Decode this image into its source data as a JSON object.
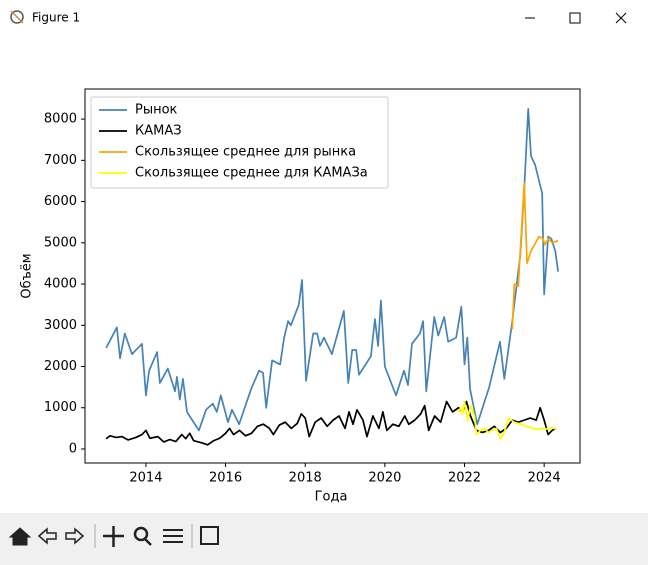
{
  "window": {
    "title": "Figure 1"
  },
  "chart_data": {
    "type": "line",
    "xlabel": "Года",
    "ylabel": "Объём",
    "xlim": [
      2012.47,
      2024.9
    ],
    "ylim": [
      -340,
      8730
    ],
    "xticks": [
      2014,
      2016,
      2018,
      2020,
      2022,
      2024
    ],
    "yticks": [
      0,
      1000,
      2000,
      3000,
      4000,
      5000,
      6000,
      7000,
      8000
    ],
    "legend": "upper left",
    "grid": false,
    "series": [
      {
        "name": "Рынок",
        "color": "#4682b4",
        "x": [
          2013.0,
          2013.27,
          2013.35,
          2013.47,
          2013.65,
          2013.9,
          2014.0,
          2014.08,
          2014.28,
          2014.35,
          2014.55,
          2014.73,
          2014.78,
          2014.85,
          2014.93,
          2015.03,
          2015.33,
          2015.51,
          2015.68,
          2015.78,
          2015.88,
          2016.06,
          2016.16,
          2016.34,
          2016.64,
          2016.84,
          2016.94,
          2017.02,
          2017.17,
          2017.37,
          2017.47,
          2017.57,
          2017.64,
          2017.84,
          2017.92,
          2018.02,
          2018.2,
          2018.3,
          2018.37,
          2018.47,
          2018.67,
          2018.97,
          2019.08,
          2019.18,
          2019.28,
          2019.35,
          2019.65,
          2019.75,
          2019.83,
          2019.9,
          2020.0,
          2020.28,
          2020.48,
          2020.58,
          2020.68,
          2020.88,
          2020.96,
          2021.04,
          2021.24,
          2021.34,
          2021.49,
          2021.59,
          2021.79,
          2021.92,
          2022.0,
          2022.07,
          2022.14,
          2022.32,
          2022.62,
          2022.89,
          2023.0,
          2023.2,
          2023.4,
          2023.5,
          2023.6,
          2023.67,
          2023.77,
          2023.95,
          2024.0,
          2024.1,
          2024.18,
          2024.28,
          2024.35
        ],
        "values": [
          2450,
          2950,
          2200,
          2800,
          2300,
          2550,
          1300,
          1900,
          2350,
          1600,
          1950,
          1400,
          1750,
          1200,
          1700,
          900,
          450,
          950,
          1100,
          900,
          1300,
          650,
          950,
          600,
          1450,
          1900,
          1850,
          1000,
          2150,
          2050,
          2700,
          3100,
          3000,
          3500,
          4100,
          1650,
          2800,
          2800,
          2500,
          2700,
          2300,
          3350,
          1600,
          2400,
          2400,
          1800,
          2250,
          3150,
          2500,
          3600,
          2000,
          1300,
          1900,
          1550,
          2550,
          2800,
          3100,
          1400,
          3200,
          2750,
          3200,
          2600,
          2700,
          3450,
          2050,
          2700,
          1450,
          600,
          1500,
          2600,
          1700,
          3100,
          4700,
          6300,
          8250,
          7100,
          6900,
          6200,
          3750,
          5150,
          5100,
          4800,
          4300
        ]
      },
      {
        "name": "КАМАЗ",
        "color": "#000000",
        "x": [
          2013.0,
          2013.1,
          2013.25,
          2013.4,
          2013.55,
          2013.75,
          2013.9,
          2014.0,
          2014.1,
          2014.3,
          2014.45,
          2014.6,
          2014.75,
          2014.9,
          2015.0,
          2015.1,
          2015.2,
          2015.4,
          2015.55,
          2015.7,
          2015.85,
          2016.0,
          2016.1,
          2016.2,
          2016.35,
          2016.5,
          2016.65,
          2016.8,
          2016.95,
          2017.1,
          2017.2,
          2017.35,
          2017.5,
          2017.65,
          2017.8,
          2017.9,
          2018.0,
          2018.1,
          2018.25,
          2018.4,
          2018.55,
          2018.7,
          2018.85,
          2019.0,
          2019.1,
          2019.2,
          2019.3,
          2019.45,
          2019.55,
          2019.7,
          2019.85,
          2019.95,
          2020.05,
          2020.2,
          2020.35,
          2020.5,
          2020.6,
          2020.75,
          2020.9,
          2021.0,
          2021.1,
          2021.25,
          2021.4,
          2021.55,
          2021.7,
          2021.85,
          2021.95,
          2022.05,
          2022.15,
          2022.3,
          2022.45,
          2022.6,
          2022.75,
          2022.9,
          2023.05,
          2023.2,
          2023.35,
          2023.5,
          2023.65,
          2023.8,
          2023.9,
          2024.0,
          2024.1,
          2024.2,
          2024.3
        ],
        "values": [
          250,
          320,
          280,
          300,
          220,
          280,
          350,
          450,
          260,
          300,
          170,
          230,
          180,
          350,
          250,
          380,
          200,
          150,
          100,
          200,
          260,
          380,
          500,
          350,
          450,
          320,
          380,
          550,
          600,
          500,
          350,
          580,
          650,
          500,
          620,
          850,
          750,
          300,
          650,
          750,
          550,
          700,
          800,
          500,
          900,
          600,
          950,
          700,
          300,
          800,
          500,
          900,
          450,
          600,
          550,
          800,
          600,
          700,
          850,
          1050,
          450,
          800,
          650,
          1150,
          900,
          1000,
          900,
          1150,
          800,
          450,
          400,
          450,
          550,
          400,
          500,
          700,
          650,
          700,
          750,
          700,
          1000,
          700,
          350,
          450,
          500
        ]
      },
      {
        "name": "Скользящее среднее для рынка",
        "color": "#ffa500",
        "x": [
          2023.2,
          2023.25,
          2023.35,
          2023.5,
          2023.57,
          2023.67,
          2023.87,
          2023.97,
          2024.02,
          2024.1,
          2024.2,
          2024.35
        ],
        "values": [
          2900,
          4000,
          3950,
          6450,
          4500,
          4800,
          5150,
          5100,
          4950,
          5100,
          5000,
          5050
        ]
      },
      {
        "name": "Скользящее среднее для КАМАЗа",
        "color": "#ffff00",
        "x": [
          2021.85,
          2021.9,
          2021.95,
          2022.0,
          2022.08,
          2022.15,
          2022.25,
          2022.3,
          2022.4,
          2022.5,
          2022.6,
          2022.7,
          2022.8,
          2022.9,
          2023.0,
          2023.1,
          2023.25,
          2023.4,
          2023.55,
          2023.7,
          2023.85,
          2024.0,
          2024.1,
          2024.2,
          2024.3
        ],
        "values": [
          900,
          1000,
          850,
          1150,
          700,
          1050,
          800,
          350,
          450,
          500,
          400,
          450,
          500,
          250,
          400,
          750,
          650,
          600,
          550,
          500,
          480,
          500,
          480,
          520,
          480
        ]
      }
    ]
  }
}
